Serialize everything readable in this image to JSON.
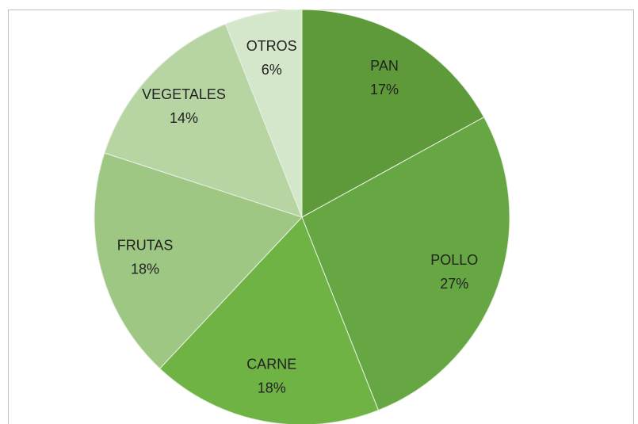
{
  "chart_data": {
    "type": "pie",
    "categories": [
      "PAN",
      "POLLO",
      "CARNE",
      "FRUTAS",
      "VEGETALES",
      "OTROS"
    ],
    "values": [
      17,
      27,
      18,
      18,
      14,
      6
    ],
    "value_labels": [
      "17%",
      "27%",
      "18%",
      "18%",
      "14%",
      "6%"
    ],
    "colors": [
      "#5e9a39",
      "#66a744",
      "#70b345",
      "#9dc783",
      "#b6d5a2",
      "#d5e7ca"
    ]
  }
}
